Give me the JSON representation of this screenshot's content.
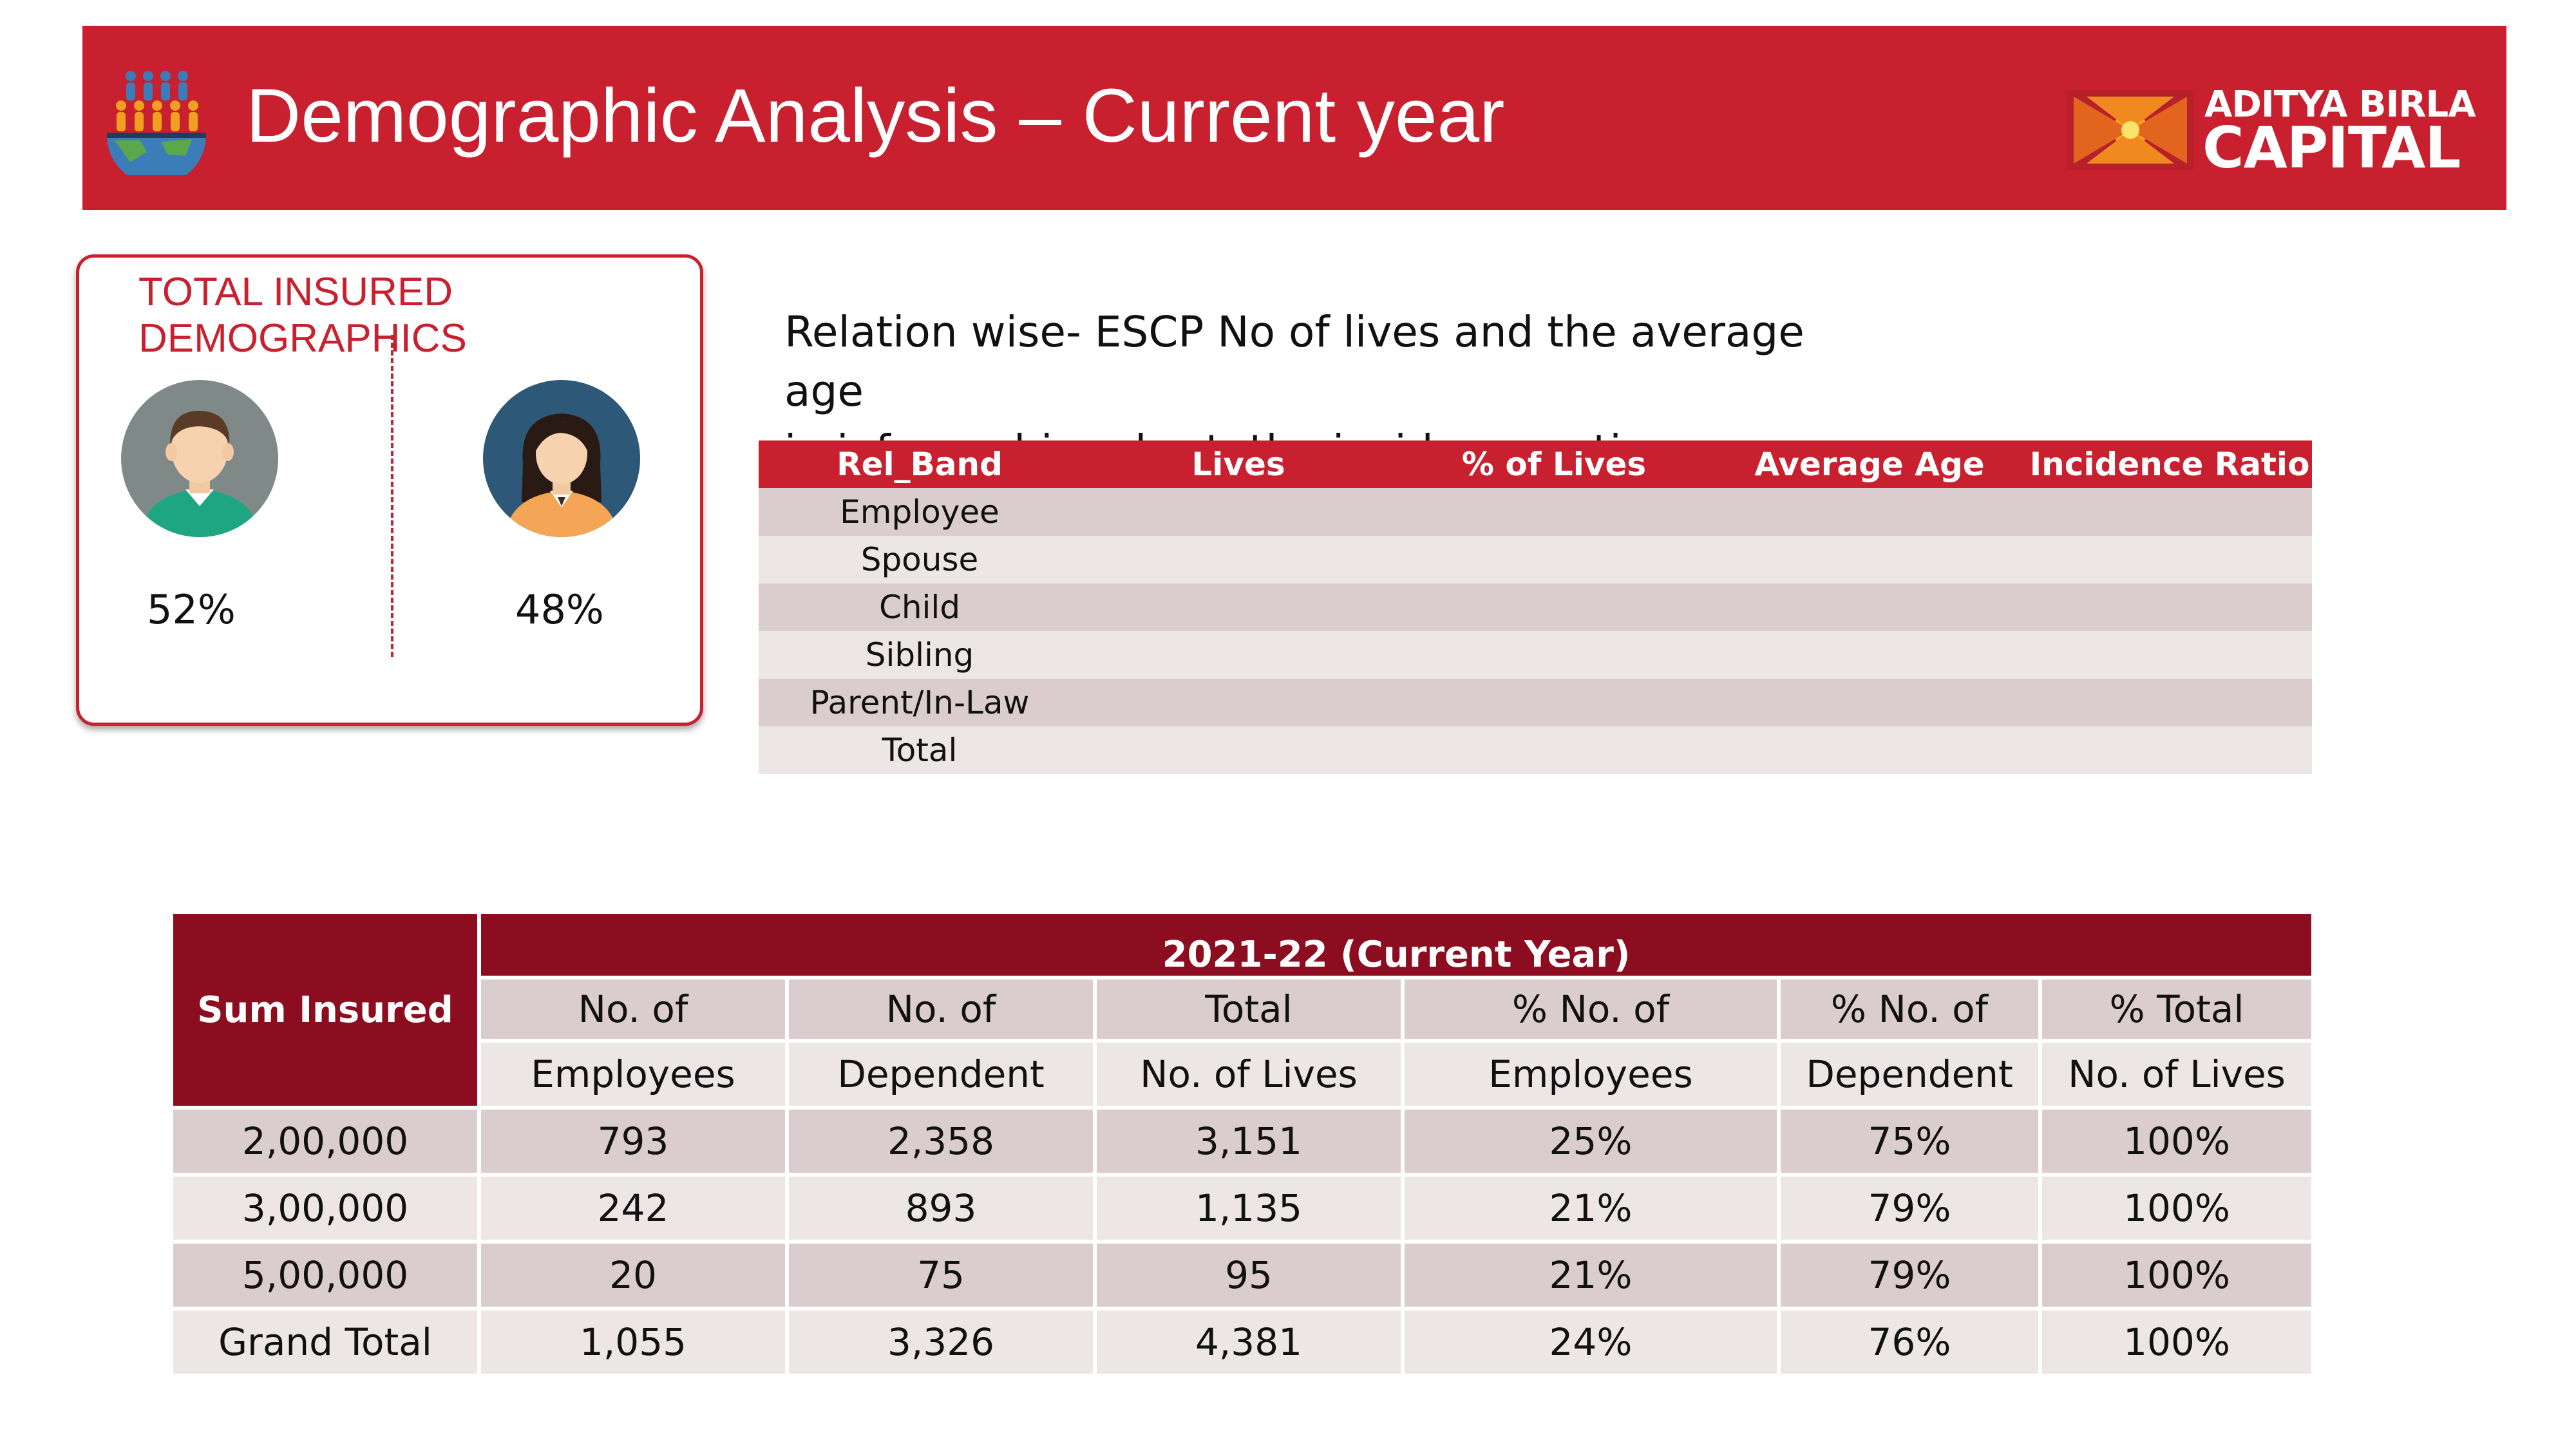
{
  "header": {
    "title": "Demographic Analysis – Current year",
    "icon": "people-globe-icon",
    "brand": {
      "line1": "ADITYA BIRLA",
      "line2": "CAPITAL"
    },
    "color": "#c8202f"
  },
  "demographics": {
    "title_line1": "TOTAL INSURED",
    "title_line2": "DEMOGRAPHICS",
    "male": {
      "icon": "male-avatar-icon",
      "percent": "52%"
    },
    "female": {
      "icon": "female-avatar-icon",
      "percent": "48%"
    }
  },
  "relation": {
    "heading_line1": "Relation wise- ESCP No of lives and the average age",
    "heading_line2": "in infographics chart, the incidence ratio",
    "columns": [
      "Rel_Band",
      "Lives",
      "% of Lives",
      "Average Age",
      "Incidence Ratio"
    ],
    "rows": [
      {
        "band": "Employee",
        "lives": "",
        "pct_lives": "",
        "avg_age": "",
        "incidence": ""
      },
      {
        "band": "Spouse",
        "lives": "",
        "pct_lives": "",
        "avg_age": "",
        "incidence": ""
      },
      {
        "band": "Child",
        "lives": "",
        "pct_lives": "",
        "avg_age": "",
        "incidence": ""
      },
      {
        "band": "Sibling",
        "lives": "",
        "pct_lives": "",
        "avg_age": "",
        "incidence": ""
      },
      {
        "band": "Parent/In-Law",
        "lives": "",
        "pct_lives": "",
        "avg_age": "",
        "incidence": ""
      },
      {
        "band": "Total",
        "lives": "",
        "pct_lives": "",
        "avg_age": "",
        "incidence": ""
      }
    ]
  },
  "sum_insured": {
    "corner_label": "Sum Insured",
    "year_label": "2021-22 (Current Year)",
    "headers_line1": [
      "No. of",
      "No. of",
      "Total",
      "% No. of",
      "% No. of",
      "% Total"
    ],
    "headers_line2": [
      "Employees",
      "Dependent",
      "No. of Lives",
      "Employees",
      "Dependent",
      "No. of Lives"
    ],
    "rows": [
      {
        "label": "2,00,000",
        "values": [
          "793",
          "2,358",
          "3,151",
          "25%",
          "75%",
          "100%"
        ]
      },
      {
        "label": "3,00,000",
        "values": [
          "242",
          "893",
          "1,135",
          "21%",
          "79%",
          "100%"
        ]
      },
      {
        "label": "5,00,000",
        "values": [
          "20",
          "75",
          "95",
          "21%",
          "79%",
          "100%"
        ]
      },
      {
        "label": "Grand Total",
        "values": [
          "1,055",
          "3,326",
          "4,381",
          "24%",
          "76%",
          "100%"
        ]
      }
    ]
  }
}
